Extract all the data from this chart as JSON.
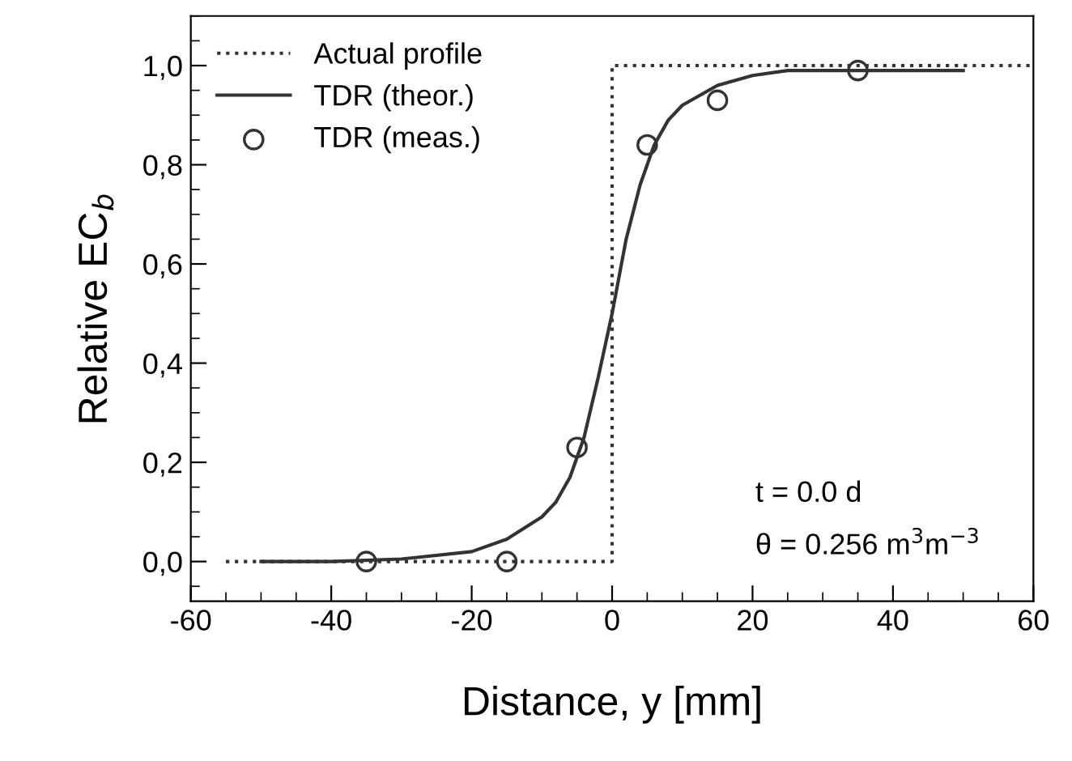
{
  "chart_data": {
    "type": "line",
    "xlabel": "Distance, y [mm]",
    "ylabel": "Relative EC$_{b}$",
    "series": [
      {
        "name": "Actual profile",
        "color": "#333333",
        "line_style": "dotted",
        "marker": "none",
        "x": [
          -55,
          0,
          0,
          60
        ],
        "values": [
          0,
          0,
          1,
          1
        ]
      },
      {
        "name": "TDR (theor.)",
        "color": "#333333",
        "line_style": "solid",
        "marker": "none",
        "x": [
          -50,
          -40,
          -30,
          -20,
          -15,
          -10,
          -8,
          -6,
          -4,
          -2,
          0,
          2,
          4,
          6,
          8,
          10,
          15,
          20,
          25,
          30,
          40,
          50
        ],
        "values": [
          0,
          0,
          0.005,
          0.02,
          0.045,
          0.09,
          0.12,
          0.17,
          0.25,
          0.37,
          0.5,
          0.65,
          0.76,
          0.84,
          0.89,
          0.92,
          0.96,
          0.98,
          0.99,
          0.99,
          0.99,
          0.99
        ]
      },
      {
        "name": "TDR (meas.)",
        "type": "scatter",
        "color": "#333333",
        "marker": "circle",
        "x": [
          -35,
          -15,
          -5,
          5,
          15,
          35
        ],
        "values": [
          0,
          0,
          0.23,
          0.84,
          0.93,
          0.99
        ]
      }
    ],
    "xlim": [
      -60,
      60
    ],
    "xticks": [
      -60,
      -40,
      -20,
      0,
      20,
      40,
      60
    ],
    "ylim": [
      -0.08,
      1.1
    ],
    "yticks": [
      {
        "value": 0,
        "label": "0,0"
      },
      {
        "value": 0.2,
        "label": "0,2"
      },
      {
        "value": 0.4,
        "label": "0,4"
      },
      {
        "value": 0.6,
        "label": "0,6"
      },
      {
        "value": 0.8,
        "label": "0,8"
      },
      {
        "value": 1.0,
        "label": "1,0"
      }
    ],
    "annotations": [
      "t = 0.0 d",
      "θ = 0.256 m$^{3}$m$^{−3}$"
    ],
    "legend": "top left",
    "grid": false
  }
}
